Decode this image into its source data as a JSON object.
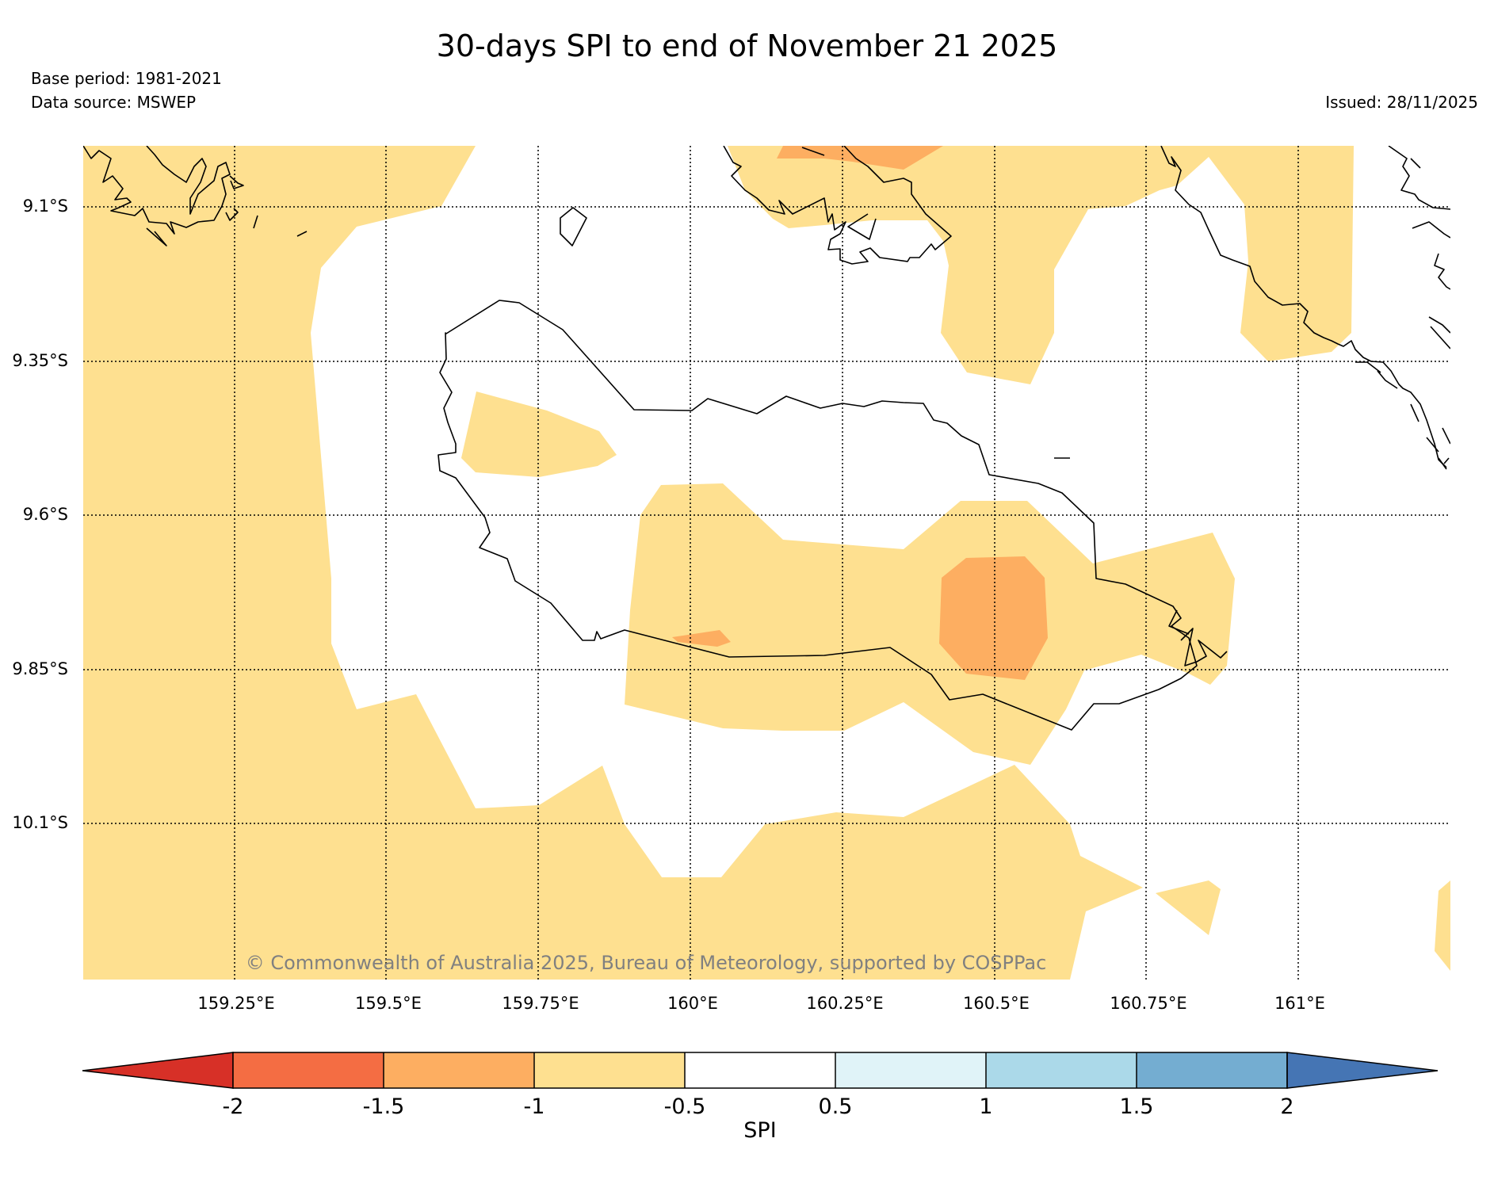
{
  "header": {
    "title": "30-days SPI to end of November 21 2025",
    "base_period": "Base period: 1981-2021",
    "data_source": "Data source: MSWEP",
    "issued": "Issued: 28/11/2025"
  },
  "map": {
    "latitude_labels": [
      "9.1°S",
      "9.35°S",
      "9.6°S",
      "9.85°S",
      "10.1°S"
    ],
    "longitude_labels": [
      "159.25°E",
      "159.5°E",
      "159.75°E",
      "160°E",
      "160.25°E",
      "160.5°E",
      "160.75°E",
      "161°E"
    ],
    "copyright": "© Commonwealth of Australia 2025, Bureau of Meteorology, supported by COSPPac",
    "gridlines": "dotted",
    "colors": {
      "spi_-1_to_-0.5": "#fee090",
      "spi_-1.5_to_-1": "#fdae61",
      "coastline": "#000000"
    }
  },
  "colorbar": {
    "label": "SPI",
    "tick_labels": [
      "-2",
      "-1.5",
      "-1",
      "-0.5",
      "0.5",
      "1",
      "1.5",
      "2"
    ],
    "colors": [
      "#d73027",
      "#f46d43",
      "#fdae61",
      "#fee090",
      "#ffffff",
      "#e0f3f8",
      "#abd9e9",
      "#74add1",
      "#4575b4"
    ]
  }
}
